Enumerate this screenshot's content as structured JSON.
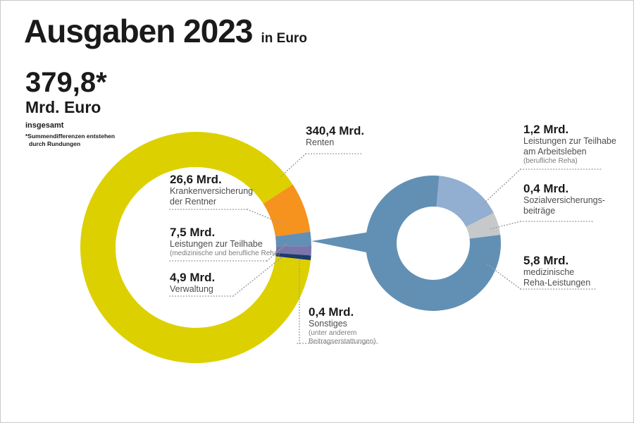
{
  "header": {
    "title": "Ausgaben 2023",
    "unit": "in Euro"
  },
  "summary": {
    "total": "379,8*",
    "unit": "Mrd. Euro",
    "caption": "insgesamt",
    "footnote_line1": "*Summendifferenzen entstehen",
    "footnote_line2": "durch Rundungen"
  },
  "callouts": {
    "renten": {
      "value": "340,4 Mrd.",
      "line1": "Renten"
    },
    "kvdr": {
      "value": "26,6 Mrd.",
      "line1": "Krankenversicherung",
      "line2": "der Rentner"
    },
    "teilhabe": {
      "value": "7,5 Mrd.",
      "line1": "Leistungen zur Teilhabe",
      "note1": "(medizinische und berufliche Reha)"
    },
    "verwaltung": {
      "value": "4,9 Mrd.",
      "line1": "Verwaltung"
    },
    "sonstiges": {
      "value": "0,4 Mrd.",
      "line1": "Sonstiges",
      "note1": "(unter anderem",
      "note2": "Beitragserstattungen)"
    },
    "arbeitsleben": {
      "value": "1,2 Mrd.",
      "line1": "Leistungen zur Teilhabe",
      "line2": "am Arbeitsleben",
      "note1": "(berufliche Reha)"
    },
    "sozial": {
      "value": "0,4 Mrd.",
      "line1": "Sozialversicherungs-",
      "line2": "beiträge"
    },
    "medreha": {
      "value": "5,8 Mrd.",
      "line1": "medizinische",
      "line2": "Reha-Leistungen"
    }
  },
  "chart_data": [
    {
      "type": "donut",
      "title": "Ausgaben 2023 in Euro",
      "total": 379.8,
      "total_label": "379,8* Mrd. Euro insgesamt",
      "unit": "Mrd. Euro",
      "segments": [
        {
          "key": "krankenversicherung-der-rentner",
          "label": "Krankenversicherung der Rentner",
          "value": 26.6,
          "color": "#f6921e"
        },
        {
          "key": "leistungen-zur-teilhabe",
          "label": "Leistungen zur Teilhabe (medizinische und berufliche Reha)",
          "value": 7.5,
          "color": "#6290b4"
        },
        {
          "key": "verwaltung",
          "label": "Verwaltung",
          "value": 4.9,
          "color": "#7a75ab"
        },
        {
          "key": "sonstiges",
          "label": "Sonstiges (unter anderem Beitragserstattungen)",
          "value": 0.4,
          "color": "#1b3c6d"
        },
        {
          "key": "renten",
          "label": "Renten",
          "value": 340.4,
          "color": "#ddd000"
        }
      ]
    },
    {
      "type": "donut",
      "title": "Leistungen zur Teilhabe — Aufteilung",
      "total": 7.5,
      "unit": "Mrd. Euro",
      "segments": [
        {
          "key": "teilhabe-am-arbeitsleben",
          "label": "Leistungen zur Teilhabe am Arbeitsleben (berufliche Reha)",
          "value": 1.2,
          "color": "#92aed0"
        },
        {
          "key": "sozialversicherungsbeitraege",
          "label": "Sozialversicherungsbeiträge",
          "value": 0.4,
          "color": "#c7c8ca"
        },
        {
          "key": "medizinische-reha-leistungen",
          "label": "medizinische Reha-Leistungen",
          "value": 5.8,
          "color": "#6290b4"
        }
      ]
    }
  ]
}
